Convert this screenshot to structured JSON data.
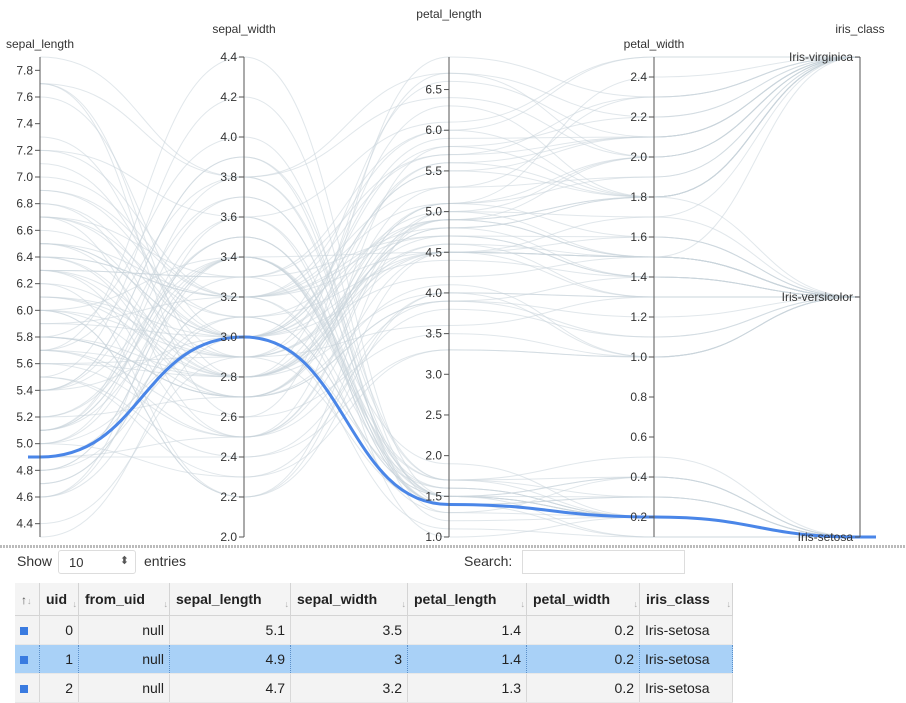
{
  "chart_data": {
    "type": "parallel_coordinates",
    "axes": [
      {
        "name": "sepal_length",
        "range": [
          4.3,
          7.9
        ],
        "ticks": [
          4.4,
          4.6,
          4.8,
          5.0,
          5.2,
          5.4,
          5.6,
          5.8,
          6.0,
          6.2,
          6.4,
          6.6,
          6.8,
          7.0,
          7.2,
          7.4,
          7.6,
          7.8
        ]
      },
      {
        "name": "sepal_width",
        "range": [
          2.0,
          4.4
        ],
        "ticks": [
          2.0,
          2.2,
          2.4,
          2.6,
          2.8,
          3.0,
          3.2,
          3.4,
          3.6,
          3.8,
          4.0,
          4.2,
          4.4
        ]
      },
      {
        "name": "petal_length",
        "range": [
          1.0,
          6.9
        ],
        "ticks": [
          1.0,
          1.5,
          2.0,
          2.5,
          3.0,
          3.5,
          4.0,
          4.5,
          5.0,
          5.5,
          6.0,
          6.5
        ]
      },
      {
        "name": "petal_width",
        "range": [
          0.1,
          2.5
        ],
        "ticks": [
          0.2,
          0.4,
          0.6,
          0.8,
          1.0,
          1.2,
          1.4,
          1.6,
          1.8,
          2.0,
          2.2,
          2.4
        ]
      },
      {
        "name": "iris_class",
        "type": "categorical",
        "categories": [
          "Iris-setosa",
          "Iris-versicolor",
          "Iris-virginica"
        ]
      }
    ],
    "highlighted": [
      4.9,
      3.0,
      1.4,
      0.2,
      "Iris-setosa"
    ],
    "highlight_color": "#4a86e8",
    "line_color": "#c9d3db",
    "background_lines": [
      [
        5.1,
        3.5,
        1.4,
        0.2,
        "Iris-setosa"
      ],
      [
        4.7,
        3.2,
        1.3,
        0.2,
        "Iris-setosa"
      ],
      [
        4.6,
        3.1,
        1.5,
        0.2,
        "Iris-setosa"
      ],
      [
        5.0,
        3.6,
        1.4,
        0.2,
        "Iris-setosa"
      ],
      [
        5.4,
        3.9,
        1.7,
        0.4,
        "Iris-setosa"
      ],
      [
        4.6,
        3.4,
        1.4,
        0.3,
        "Iris-setosa"
      ],
      [
        5.0,
        3.4,
        1.5,
        0.2,
        "Iris-setosa"
      ],
      [
        4.4,
        2.9,
        1.4,
        0.2,
        "Iris-setosa"
      ],
      [
        4.9,
        3.1,
        1.5,
        0.1,
        "Iris-setosa"
      ],
      [
        5.4,
        3.7,
        1.5,
        0.2,
        "Iris-setosa"
      ],
      [
        4.8,
        3.4,
        1.6,
        0.2,
        "Iris-setosa"
      ],
      [
        4.8,
        3.0,
        1.4,
        0.1,
        "Iris-setosa"
      ],
      [
        4.3,
        3.0,
        1.1,
        0.1,
        "Iris-setosa"
      ],
      [
        5.8,
        4.0,
        1.2,
        0.2,
        "Iris-setosa"
      ],
      [
        5.7,
        4.4,
        1.5,
        0.4,
        "Iris-setosa"
      ],
      [
        5.4,
        3.9,
        1.3,
        0.4,
        "Iris-setosa"
      ],
      [
        5.1,
        3.5,
        1.4,
        0.3,
        "Iris-setosa"
      ],
      [
        5.7,
        3.8,
        1.7,
        0.3,
        "Iris-setosa"
      ],
      [
        5.1,
        3.8,
        1.5,
        0.3,
        "Iris-setosa"
      ],
      [
        5.4,
        3.4,
        1.7,
        0.2,
        "Iris-setosa"
      ],
      [
        5.1,
        3.7,
        1.5,
        0.4,
        "Iris-setosa"
      ],
      [
        4.6,
        3.6,
        1.0,
        0.2,
        "Iris-setosa"
      ],
      [
        5.1,
        3.3,
        1.7,
        0.5,
        "Iris-setosa"
      ],
      [
        4.8,
        3.4,
        1.9,
        0.2,
        "Iris-setosa"
      ],
      [
        5.0,
        3.0,
        1.6,
        0.2,
        "Iris-setosa"
      ],
      [
        5.2,
        3.5,
        1.5,
        0.2,
        "Iris-setosa"
      ],
      [
        5.2,
        3.4,
        1.4,
        0.2,
        "Iris-setosa"
      ],
      [
        4.7,
        3.2,
        1.6,
        0.2,
        "Iris-setosa"
      ],
      [
        5.5,
        4.2,
        1.4,
        0.2,
        "Iris-setosa"
      ],
      [
        5.0,
        2.3,
        3.3,
        1.0,
        "Iris-versicolor"
      ],
      [
        7.0,
        3.2,
        4.7,
        1.4,
        "Iris-versicolor"
      ],
      [
        6.4,
        3.2,
        4.5,
        1.5,
        "Iris-versicolor"
      ],
      [
        6.9,
        3.1,
        4.9,
        1.5,
        "Iris-versicolor"
      ],
      [
        5.5,
        2.3,
        4.0,
        1.3,
        "Iris-versicolor"
      ],
      [
        6.5,
        2.8,
        4.6,
        1.5,
        "Iris-versicolor"
      ],
      [
        5.7,
        2.8,
        4.5,
        1.3,
        "Iris-versicolor"
      ],
      [
        6.3,
        3.3,
        4.7,
        1.6,
        "Iris-versicolor"
      ],
      [
        4.9,
        2.4,
        3.3,
        1.0,
        "Iris-versicolor"
      ],
      [
        6.6,
        2.9,
        4.6,
        1.3,
        "Iris-versicolor"
      ],
      [
        5.2,
        2.7,
        3.9,
        1.4,
        "Iris-versicolor"
      ],
      [
        5.9,
        3.0,
        4.2,
        1.5,
        "Iris-versicolor"
      ],
      [
        6.0,
        2.2,
        4.0,
        1.0,
        "Iris-versicolor"
      ],
      [
        6.1,
        2.9,
        4.7,
        1.4,
        "Iris-versicolor"
      ],
      [
        5.6,
        2.9,
        3.6,
        1.3,
        "Iris-versicolor"
      ],
      [
        6.7,
        3.1,
        4.4,
        1.4,
        "Iris-versicolor"
      ],
      [
        5.8,
        2.7,
        4.1,
        1.0,
        "Iris-versicolor"
      ],
      [
        6.2,
        2.2,
        4.5,
        1.5,
        "Iris-versicolor"
      ],
      [
        5.6,
        2.5,
        3.9,
        1.1,
        "Iris-versicolor"
      ],
      [
        5.9,
        3.2,
        4.8,
        1.8,
        "Iris-versicolor"
      ],
      [
        6.1,
        2.8,
        4.0,
        1.3,
        "Iris-versicolor"
      ],
      [
        6.3,
        2.5,
        4.9,
        1.5,
        "Iris-versicolor"
      ],
      [
        6.8,
        2.8,
        4.8,
        1.4,
        "Iris-versicolor"
      ],
      [
        6.7,
        3.0,
        5.0,
        1.7,
        "Iris-versicolor"
      ],
      [
        6.0,
        2.9,
        4.5,
        1.5,
        "Iris-versicolor"
      ],
      [
        5.7,
        2.6,
        3.5,
        1.0,
        "Iris-versicolor"
      ],
      [
        5.5,
        2.4,
        3.8,
        1.1,
        "Iris-versicolor"
      ],
      [
        5.8,
        2.7,
        3.9,
        1.2,
        "Iris-versicolor"
      ],
      [
        6.0,
        2.7,
        5.1,
        1.6,
        "Iris-versicolor"
      ],
      [
        5.4,
        3.0,
        4.5,
        1.5,
        "Iris-versicolor"
      ],
      [
        6.0,
        3.4,
        4.5,
        1.6,
        "Iris-versicolor"
      ],
      [
        6.3,
        3.3,
        6.0,
        2.5,
        "Iris-virginica"
      ],
      [
        5.8,
        2.7,
        5.1,
        1.9,
        "Iris-virginica"
      ],
      [
        7.1,
        3.0,
        5.9,
        2.1,
        "Iris-virginica"
      ],
      [
        6.3,
        2.9,
        5.6,
        1.8,
        "Iris-virginica"
      ],
      [
        6.5,
        3.0,
        5.8,
        2.2,
        "Iris-virginica"
      ],
      [
        7.6,
        3.0,
        6.6,
        2.1,
        "Iris-virginica"
      ],
      [
        4.9,
        2.5,
        4.5,
        1.7,
        "Iris-virginica"
      ],
      [
        7.3,
        2.9,
        6.3,
        1.8,
        "Iris-virginica"
      ],
      [
        6.7,
        2.5,
        5.8,
        1.8,
        "Iris-virginica"
      ],
      [
        7.2,
        3.6,
        6.1,
        2.5,
        "Iris-virginica"
      ],
      [
        6.5,
        3.2,
        5.1,
        2.0,
        "Iris-virginica"
      ],
      [
        6.4,
        2.7,
        5.3,
        1.9,
        "Iris-virginica"
      ],
      [
        6.8,
        3.0,
        5.5,
        2.1,
        "Iris-virginica"
      ],
      [
        5.7,
        2.5,
        5.0,
        2.0,
        "Iris-virginica"
      ],
      [
        5.8,
        2.8,
        5.1,
        2.4,
        "Iris-virginica"
      ],
      [
        6.4,
        3.2,
        5.3,
        2.3,
        "Iris-virginica"
      ],
      [
        6.5,
        3.0,
        5.5,
        1.8,
        "Iris-virginica"
      ],
      [
        7.7,
        3.8,
        6.7,
        2.2,
        "Iris-virginica"
      ],
      [
        7.7,
        2.6,
        6.9,
        2.3,
        "Iris-virginica"
      ],
      [
        6.0,
        2.2,
        5.0,
        1.5,
        "Iris-virginica"
      ],
      [
        6.9,
        3.2,
        5.7,
        2.3,
        "Iris-virginica"
      ],
      [
        5.6,
        2.8,
        4.9,
        2.0,
        "Iris-virginica"
      ],
      [
        7.7,
        2.8,
        6.7,
        2.0,
        "Iris-virginica"
      ],
      [
        6.3,
        2.7,
        4.9,
        1.8,
        "Iris-virginica"
      ],
      [
        6.7,
        3.3,
        5.7,
        2.1,
        "Iris-virginica"
      ],
      [
        7.2,
        3.2,
        6.0,
        1.8,
        "Iris-virginica"
      ],
      [
        6.2,
        2.8,
        4.8,
        1.8,
        "Iris-virginica"
      ],
      [
        6.1,
        3.0,
        4.9,
        1.8,
        "Iris-virginica"
      ],
      [
        6.4,
        2.8,
        5.6,
        2.1,
        "Iris-virginica"
      ],
      [
        7.9,
        3.8,
        6.4,
        2.0,
        "Iris-virginica"
      ]
    ]
  },
  "controls": {
    "show_label": "Show",
    "entries_value": "10",
    "entries_label": "entries",
    "search_label": "Search:",
    "search_value": ""
  },
  "table": {
    "columns": [
      "uid",
      "from_uid",
      "sepal_length",
      "sepal_width",
      "petal_length",
      "petal_width",
      "iris_class"
    ],
    "rows": [
      {
        "uid": "0",
        "from_uid": "null",
        "sepal_length": "5.1",
        "sepal_width": "3.5",
        "petal_length": "1.4",
        "petal_width": "0.2",
        "iris_class": "Iris-setosa"
      },
      {
        "uid": "1",
        "from_uid": "null",
        "sepal_length": "4.9",
        "sepal_width": "3",
        "petal_length": "1.4",
        "petal_width": "0.2",
        "iris_class": "Iris-setosa"
      },
      {
        "uid": "2",
        "from_uid": "null",
        "sepal_length": "4.7",
        "sepal_width": "3.2",
        "petal_length": "1.3",
        "petal_width": "0.2",
        "iris_class": "Iris-setosa"
      }
    ],
    "selected_row": 1,
    "marker_color": "#3a7be0",
    "selected_color": "#a9d1f7"
  }
}
